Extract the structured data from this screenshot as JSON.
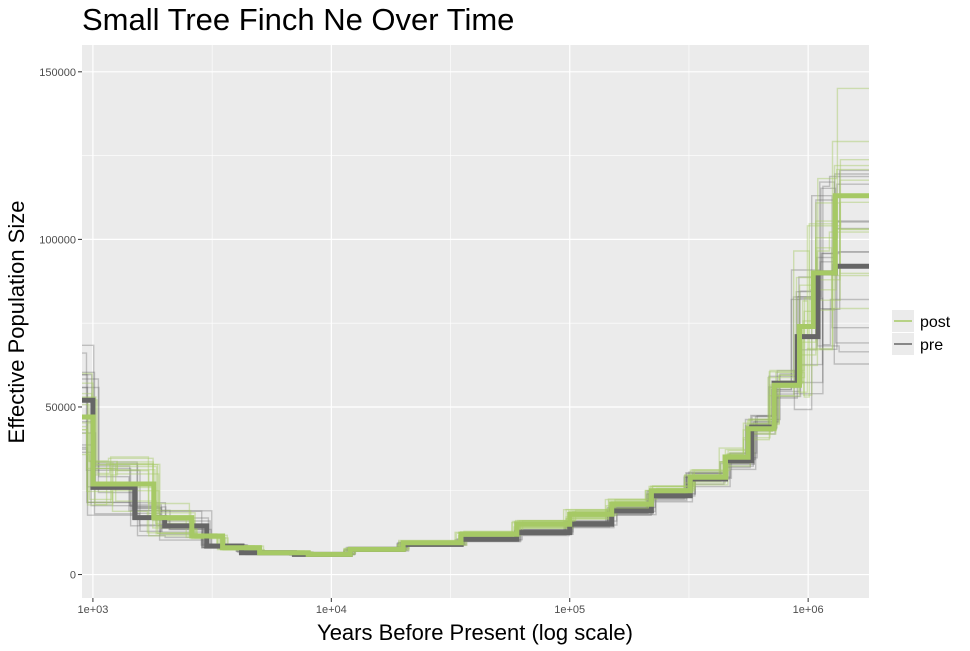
{
  "chart_data": {
    "type": "line",
    "title": "Small Tree Finch Ne Over Time",
    "xlabel": "Years Before Present (log scale)",
    "ylabel": "Effective Population Size",
    "x_scale": "log10",
    "xlim": [
      900,
      1800000
    ],
    "ylim": [
      -7000,
      158000
    ],
    "x_ticks": [
      1000,
      10000,
      100000,
      1000000
    ],
    "x_tick_labels": [
      "1e+03",
      "1e+04",
      "1e+05",
      "1e+06"
    ],
    "y_ticks": [
      0,
      50000,
      100000,
      150000
    ],
    "y_tick_labels": [
      "0",
      "50000",
      "100000",
      "150000"
    ],
    "grid": true,
    "legend_position": "right",
    "legend": [
      {
        "label": "post",
        "color": "#a6c965"
      },
      {
        "label": "pre",
        "color": "#666666"
      }
    ],
    "series": [
      {
        "name": "pre",
        "color": "#666666",
        "step_x": [
          900,
          1000,
          1500,
          2000,
          3000,
          4200,
          7000,
          12000,
          20000,
          35000,
          60000,
          100000,
          150000,
          220000,
          320000,
          450000,
          580000,
          720000,
          900000,
          1100000,
          1300000,
          1800000
        ],
        "step_y": [
          52000,
          26000,
          17000,
          14500,
          8500,
          6500,
          6000,
          7500,
          9000,
          10500,
          12500,
          15000,
          19000,
          23500,
          28500,
          34000,
          44000,
          57000,
          71000,
          90000,
          92000,
          92000
        ]
      },
      {
        "name": "post",
        "color": "#a6c965",
        "step_x": [
          900,
          1000,
          1200,
          1800,
          2600,
          3500,
          5000,
          8000,
          12000,
          20000,
          35000,
          60000,
          100000,
          150000,
          220000,
          320000,
          450000,
          560000,
          720000,
          920000,
          1050000,
          1300000,
          1800000
        ],
        "step_y": [
          47000,
          27000,
          27000,
          17000,
          11500,
          8000,
          6500,
          6000,
          7500,
          9500,
          12000,
          15000,
          18000,
          21000,
          25000,
          29000,
          35000,
          43500,
          56500,
          74000,
          90000,
          113000,
          113000
        ]
      }
    ]
  }
}
